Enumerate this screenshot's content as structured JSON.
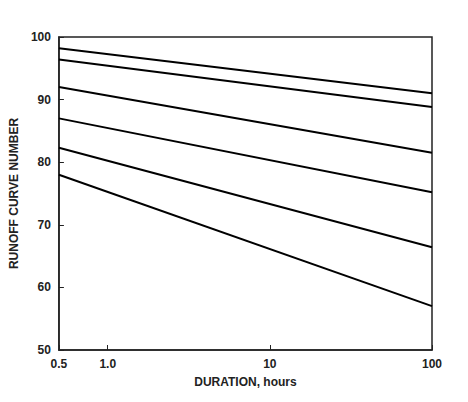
{
  "chart_data": {
    "type": "line",
    "xlabel": "DURATION, hours",
    "ylabel": "RUNOFF CURVE NUMBER",
    "x": [
      0.5,
      100
    ],
    "series": [
      {
        "color": "#000000",
        "values": [
          98.2,
          91.0
        ]
      },
      {
        "color": "#000000",
        "values": [
          96.4,
          88.8
        ]
      },
      {
        "color": "#000000",
        "values": [
          92.0,
          81.5
        ]
      },
      {
        "color": "#000000",
        "values": [
          87.0,
          75.2
        ]
      },
      {
        "color": "#000000",
        "values": [
          82.3,
          66.4
        ]
      },
      {
        "color": "#000000",
        "values": [
          78.0,
          57.0
        ]
      }
    ],
    "xlim": [
      0.5,
      100
    ],
    "xticks": [
      0.5,
      {
        "value": 1,
        "label": "1.0"
      },
      10,
      100
    ],
    "ylim": [
      50,
      100
    ],
    "yticks": [
      50,
      60,
      70,
      80,
      90,
      100
    ],
    "log": "x",
    "grid": false,
    "tick_labels": true
  }
}
